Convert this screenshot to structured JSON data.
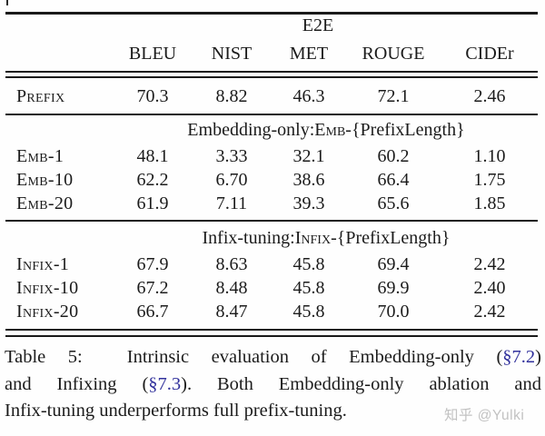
{
  "colors": {
    "text": "#1b1b1b",
    "rule": "#1a1a1a",
    "link": "#31319c",
    "watermark": "#c2c2c2",
    "background": "#fefefe"
  },
  "table": {
    "span_header": "E2E",
    "columns": [
      "BLEU",
      "NIST",
      "MET",
      "ROUGE",
      "CIDEr"
    ],
    "prefix_row": {
      "label": "Prefix",
      "values": [
        "70.3",
        "8.82",
        "46.3",
        "72.1",
        "2.46"
      ]
    },
    "emb_section": {
      "title_lead": "Embedding-only: ",
      "title_smallcaps": "Emb",
      "title_tail": "-{PrefixLength}",
      "rows": [
        {
          "label": "Emb-1",
          "values": [
            "48.1",
            "3.33",
            "32.1",
            "60.2",
            "1.10"
          ]
        },
        {
          "label": "Emb-10",
          "values": [
            "62.2",
            "6.70",
            "38.6",
            "66.4",
            "1.75"
          ]
        },
        {
          "label": "Emb-20",
          "values": [
            "61.9",
            "7.11",
            "39.3",
            "65.6",
            "1.85"
          ]
        }
      ]
    },
    "infix_section": {
      "title_lead": "Infix-tuning: ",
      "title_smallcaps": "Infix",
      "title_tail": "-{PrefixLength}",
      "rows": [
        {
          "label": "Infix-1",
          "values": [
            "67.9",
            "8.63",
            "45.8",
            "69.4",
            "2.42"
          ]
        },
        {
          "label": "Infix-10",
          "values": [
            "67.2",
            "8.48",
            "45.8",
            "69.9",
            "2.40"
          ]
        },
        {
          "label": "Infix-20",
          "values": [
            "66.7",
            "8.47",
            "45.8",
            "70.0",
            "2.42"
          ]
        }
      ]
    }
  },
  "caption": {
    "line1": {
      "pre": "Table 5:  Intrinsic evaluation of Embedding-only (",
      "link": "§7.2",
      "post": ")"
    },
    "line2": {
      "pre": "and Infixing (",
      "link": "§7.3",
      "post": "). Both Embedding-only ablation and"
    },
    "line3": {
      "text": "Infix-tuning underperforms full prefix-tuning."
    }
  },
  "watermark": {
    "text": "知乎 @Yulki"
  }
}
